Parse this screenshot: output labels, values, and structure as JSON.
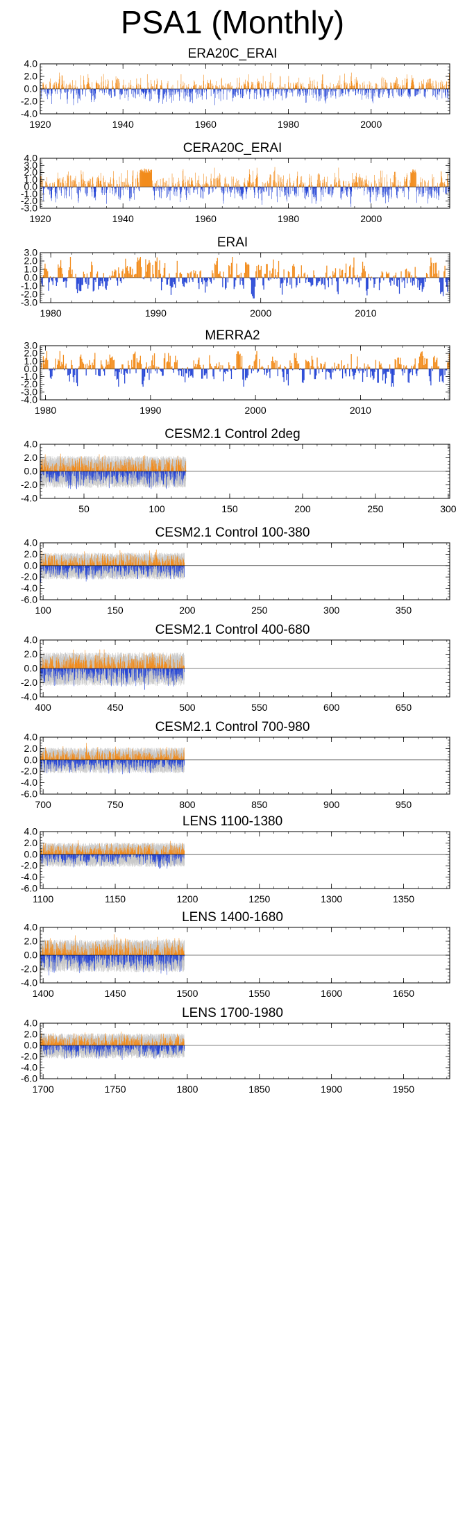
{
  "page": {
    "title": "PSA1 (Monthly)"
  },
  "colors": {
    "positive": "#f28c1c",
    "negative": "#2747d6",
    "spread": "#c8c8c8",
    "frame": "#000000"
  },
  "chart_data": [
    {
      "type": "bar",
      "title": "ERA20C_ERAI",
      "series_kind": "monthly-index-anomaly",
      "ylim": [
        -4,
        4
      ],
      "yticks": [
        "4.0",
        "2.0",
        "0.0",
        "-2.0",
        "-4.0"
      ],
      "ytick_values": [
        4,
        2,
        0,
        -2,
        -4
      ],
      "xlim": [
        1920,
        2019
      ],
      "xticks": [
        "1920",
        "1940",
        "1960",
        "1980",
        "2000"
      ],
      "xtick_values": [
        1920,
        1940,
        1960,
        1980,
        2000
      ],
      "typical_amplitude": 0.9,
      "max_amplitude": 2.6,
      "has_spread": false,
      "events": []
    },
    {
      "type": "bar",
      "title": "CERA20C_ERAI",
      "series_kind": "monthly-index-anomaly",
      "ylim": [
        -3,
        4
      ],
      "yticks": [
        "4.0",
        "3.0",
        "2.0",
        "1.0",
        "0.0",
        "-1.0",
        "-2.0",
        "-3.0"
      ],
      "ytick_values": [
        4,
        3,
        2,
        1,
        0,
        -1,
        -2,
        -3
      ],
      "xlim": [
        1920,
        2019
      ],
      "xticks": [
        "1920",
        "1940",
        "1960",
        "1980",
        "2000"
      ],
      "xtick_values": [
        1920,
        1940,
        1960,
        1980,
        2000
      ],
      "typical_amplitude": 0.9,
      "max_amplitude": 2.8,
      "has_spread": false,
      "events": [
        {
          "start": 1944,
          "end": 1947,
          "value": 2.6
        },
        {
          "start": 2009.5,
          "end": 2010.8,
          "value": 2.5
        }
      ]
    },
    {
      "type": "bar",
      "title": "ERAI",
      "series_kind": "monthly-index-anomaly",
      "ylim": [
        -3,
        3
      ],
      "yticks": [
        "3.0",
        "2.0",
        "1.0",
        "0.0",
        "-1.0",
        "-2.0",
        "-3.0"
      ],
      "ytick_values": [
        3,
        2,
        1,
        0,
        -1,
        -2,
        -3
      ],
      "xlim": [
        1979,
        2018
      ],
      "xticks": [
        "1980",
        "1990",
        "2000",
        "2010"
      ],
      "xtick_values": [
        1980,
        1990,
        2000,
        2010
      ],
      "typical_amplitude": 0.9,
      "max_amplitude": 2.5,
      "has_spread": false,
      "events": [
        {
          "start": 1988.2,
          "end": 1988.5,
          "value": 2.5
        },
        {
          "start": 1998.5,
          "end": 1998.9,
          "value": 2.0
        }
      ]
    },
    {
      "type": "bar",
      "title": "MERRA2",
      "series_kind": "monthly-index-anomaly",
      "ylim": [
        -4,
        3
      ],
      "yticks": [
        "3.0",
        "2.0",
        "1.0",
        "0.0",
        "-1.0",
        "-2.0",
        "-3.0",
        "-4.0"
      ],
      "ytick_values": [
        3,
        2,
        1,
        0,
        -1,
        -2,
        -3,
        -4
      ],
      "xlim": [
        1979.5,
        2018.5
      ],
      "xticks": [
        "1980",
        "1990",
        "2000",
        "2010"
      ],
      "xtick_values": [
        1980,
        1990,
        2000,
        2010
      ],
      "typical_amplitude": 0.9,
      "max_amplitude": 2.3,
      "has_spread": false,
      "events": [
        {
          "start": 1988.3,
          "end": 1988.6,
          "value": 2.3
        },
        {
          "start": 1998.2,
          "end": 1998.6,
          "value": 2.3
        }
      ]
    },
    {
      "type": "bar",
      "title": "CESM2.1 Control 2deg",
      "series_kind": "monthly-index-anomaly",
      "ylim": [
        -4,
        4
      ],
      "yticks": [
        "4.0",
        "2.0",
        "0.0",
        "-2.0",
        "-4.0"
      ],
      "ytick_values": [
        4,
        2,
        0,
        -2,
        -4
      ],
      "xlim": [
        20,
        301
      ],
      "xticks": [
        "50",
        "100",
        "150",
        "200",
        "250",
        "300"
      ],
      "xtick_values": [
        50,
        100,
        150,
        200,
        250,
        300
      ],
      "typical_amplitude": 0.85,
      "max_amplitude": 2.6,
      "has_spread": true,
      "events": []
    },
    {
      "type": "bar",
      "title": "CESM2.1 Control 100-380",
      "series_kind": "monthly-index-anomaly",
      "ylim": [
        -6,
        4
      ],
      "yticks": [
        "4.0",
        "2.0",
        "0.0",
        "-2.0",
        "-4.0",
        "-6.0"
      ],
      "ytick_values": [
        4,
        2,
        0,
        -2,
        -4,
        -6
      ],
      "xlim": [
        98,
        382
      ],
      "xticks": [
        "100",
        "150",
        "200",
        "250",
        "300",
        "350"
      ],
      "xtick_values": [
        100,
        150,
        200,
        250,
        300,
        350
      ],
      "typical_amplitude": 0.85,
      "max_amplitude": 3.0,
      "has_spread": true,
      "events": []
    },
    {
      "type": "bar",
      "title": "CESM2.1 Control 400-680",
      "series_kind": "monthly-index-anomaly",
      "ylim": [
        -4,
        4
      ],
      "yticks": [
        "4.0",
        "2.0",
        "0.0",
        "-2.0",
        "-4.0"
      ],
      "ytick_values": [
        4,
        2,
        0,
        -2,
        -4
      ],
      "xlim": [
        398,
        682
      ],
      "xticks": [
        "400",
        "450",
        "500",
        "550",
        "600",
        "650"
      ],
      "xtick_values": [
        400,
        450,
        500,
        550,
        600,
        650
      ],
      "typical_amplitude": 0.85,
      "max_amplitude": 3.0,
      "has_spread": true,
      "events": []
    },
    {
      "type": "bar",
      "title": "CESM2.1 Control 700-980",
      "series_kind": "monthly-index-anomaly",
      "ylim": [
        -6,
        4
      ],
      "yticks": [
        "4.0",
        "2.0",
        "0.0",
        "-2.0",
        "-4.0",
        "-6.0"
      ],
      "ytick_values": [
        4,
        2,
        0,
        -2,
        -4,
        -6
      ],
      "xlim": [
        698,
        982
      ],
      "xticks": [
        "700",
        "750",
        "800",
        "850",
        "900",
        "950"
      ],
      "xtick_values": [
        700,
        750,
        800,
        850,
        900,
        950
      ],
      "typical_amplitude": 0.8,
      "max_amplitude": 3.0,
      "has_spread": true,
      "events": []
    },
    {
      "type": "bar",
      "title": "LENS 1100-1380",
      "series_kind": "monthly-index-anomaly",
      "ylim": [
        -6,
        4
      ],
      "yticks": [
        "4.0",
        "2.0",
        "0.0",
        "-2.0",
        "-4.0",
        "-6.0"
      ],
      "ytick_values": [
        4,
        2,
        0,
        -2,
        -4,
        -6
      ],
      "xlim": [
        1098,
        1382
      ],
      "xticks": [
        "1100",
        "1150",
        "1200",
        "1250",
        "1300",
        "1350"
      ],
      "xtick_values": [
        1100,
        1150,
        1200,
        1250,
        1300,
        1350
      ],
      "typical_amplitude": 0.75,
      "max_amplitude": 2.5,
      "has_spread": true,
      "events": []
    },
    {
      "type": "bar",
      "title": "LENS 1400-1680",
      "series_kind": "monthly-index-anomaly",
      "ylim": [
        -4,
        4
      ],
      "yticks": [
        "4.0",
        "2.0",
        "0.0",
        "-2.0",
        "-4.0"
      ],
      "ytick_values": [
        4,
        2,
        0,
        -2,
        -4
      ],
      "xlim": [
        1398,
        1682
      ],
      "xticks": [
        "1400",
        "1450",
        "1500",
        "1550",
        "1600",
        "1650"
      ],
      "xtick_values": [
        1400,
        1450,
        1500,
        1550,
        1600,
        1650
      ],
      "typical_amplitude": 0.85,
      "max_amplitude": 3.0,
      "has_spread": true,
      "events": []
    },
    {
      "type": "bar",
      "title": "LENS 1700-1980",
      "series_kind": "monthly-index-anomaly",
      "ylim": [
        -6,
        4
      ],
      "yticks": [
        "4.0",
        "2.0",
        "0.0",
        "-2.0",
        "-4.0",
        "-6.0"
      ],
      "ytick_values": [
        4,
        2,
        0,
        -2,
        -4,
        -6
      ],
      "xlim": [
        1698,
        1982
      ],
      "xticks": [
        "1700",
        "1750",
        "1800",
        "1850",
        "1900",
        "1950"
      ],
      "xtick_values": [
        1700,
        1750,
        1800,
        1850,
        1900,
        1950
      ],
      "typical_amplitude": 0.8,
      "max_amplitude": 3.0,
      "has_spread": true,
      "events": []
    }
  ]
}
